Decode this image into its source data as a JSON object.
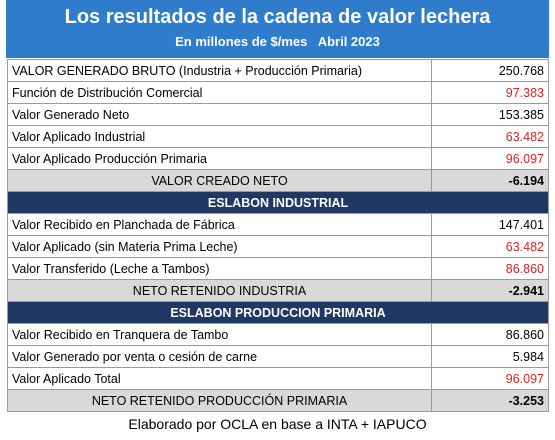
{
  "header": {
    "title": "Los resultados de la cadena de valor lechera",
    "subtitle": "En millones de $/mes   Abril 2023"
  },
  "table": {
    "rows": [
      [
        "VALOR GENERADO BRUTO (Industria + Producción Primaria)",
        "250.768"
      ],
      [
        "Función de Distribución Comercial",
        "97.383"
      ],
      [
        "Valor Generado Neto",
        "153.385"
      ],
      [
        "Valor Aplicado Industrial",
        "63.482"
      ],
      [
        "Valor Aplicado Producción Primaria",
        "96.097"
      ],
      [
        "VALOR CREADO NETO",
        "-6.194"
      ],
      [
        "ESLABON  INDUSTRIAL"
      ],
      [
        "Valor Recibido en Planchada de Fábrica",
        "147.401"
      ],
      [
        "Valor Aplicado (sin Materia Prima Leche)",
        "63.482"
      ],
      [
        "Valor Transferido (Leche a Tambos)",
        "86.860"
      ],
      [
        "NETO RETENIDO INDUSTRIA",
        "-2.941"
      ],
      [
        "ESLABON  PRODUCCION  PRIMARIA"
      ],
      [
        "Valor Recibido en Tranquera de Tambo",
        "86.860"
      ],
      [
        "Valor Generado por venta o cesión de carne",
        "5.984"
      ],
      [
        "Valor Aplicado  Total",
        "96.097"
      ],
      [
        "NETO RETENIDO PRODUCCIÓN PRIMARIA",
        "-3.253"
      ]
    ]
  },
  "footer": "Elaborado por OCLA en base a INTA + IAPUCO"
}
